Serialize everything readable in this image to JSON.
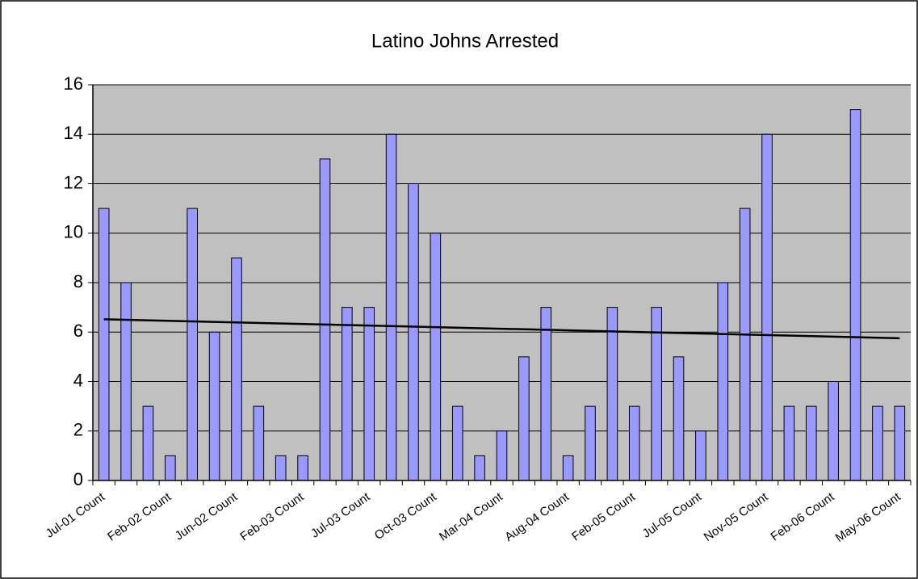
{
  "chart_data": {
    "type": "bar",
    "title": "Latino Johns Arrested",
    "categories": [
      "Jul-01 Count",
      null,
      null,
      "Feb-02 Count",
      null,
      null,
      "Jun-02 Count",
      null,
      null,
      "Feb-03 Count",
      null,
      null,
      "Jul-03 Count",
      null,
      null,
      "Oct-03 Count",
      null,
      null,
      "Mar-04 Count",
      null,
      null,
      "Aug-04 Count",
      null,
      null,
      "Feb-05 Count",
      null,
      null,
      "Jul-05 Count",
      null,
      null,
      "Nov-05 Count",
      null,
      null,
      "Feb-06 Count",
      null,
      null,
      "May-06 Count"
    ],
    "values": [
      11,
      8,
      3,
      1,
      11,
      6,
      9,
      3,
      1,
      1,
      13,
      7,
      7,
      14,
      12,
      10,
      3,
      1,
      2,
      5,
      7,
      1,
      3,
      7,
      3,
      7,
      5,
      2,
      8,
      11,
      14,
      3,
      3,
      4,
      15,
      3,
      3
    ],
    "color": "#9999ff",
    "ylim": [
      0,
      16
    ],
    "yticks": [
      0,
      2,
      4,
      6,
      8,
      10,
      12,
      14,
      16
    ],
    "grid": true,
    "trendline": "linear"
  }
}
